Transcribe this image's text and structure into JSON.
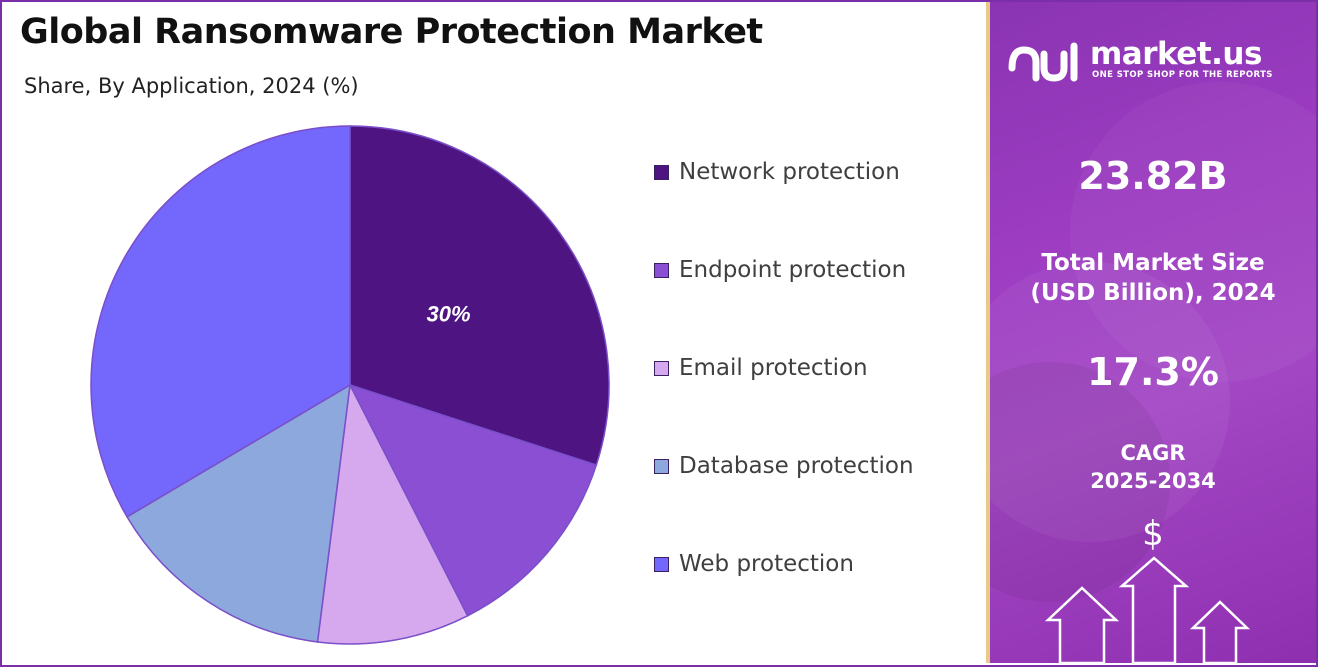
{
  "title": "Global Ransomware Protection Market",
  "subtitle": "Share, By Application, 2024 (%)",
  "chart_data": {
    "type": "pie",
    "title": "Global Ransomware Protection Market",
    "subtitle": "Share, By Application, 2024 (%)",
    "start_angle_deg": 0,
    "direction": "clockwise",
    "legend_position": "right",
    "slices": [
      {
        "label": "Network protection",
        "value": 30,
        "color": "#4d1482",
        "data_label": "30%"
      },
      {
        "label": "Endpoint protection",
        "value": 12.5,
        "color": "#8b4fd3",
        "data_label": ""
      },
      {
        "label": "Email protection",
        "value": 9.5,
        "color": "#d6a8ee",
        "data_label": ""
      },
      {
        "label": "Database protection",
        "value": 14.5,
        "color": "#8ca8dc",
        "data_label": ""
      },
      {
        "label": "Web protection",
        "value": 33.5,
        "color": "#7467fb",
        "data_label": ""
      }
    ]
  },
  "sidebar": {
    "logo_text": "market.us",
    "logo_tagline": "ONE STOP SHOP FOR THE REPORTS",
    "market_size_value": "23.82B",
    "market_size_label_line1": "Total Market Size",
    "market_size_label_line2": "(USD Billion), 2024",
    "cagr_value": "17.3%",
    "cagr_label_line1": "CAGR",
    "cagr_label_line2": "2025-2034",
    "currency_symbol": "$",
    "colors": {
      "panel": "#9b3cc0",
      "accent_border": "#e9c98a",
      "frame": "#7a2fa8"
    }
  }
}
